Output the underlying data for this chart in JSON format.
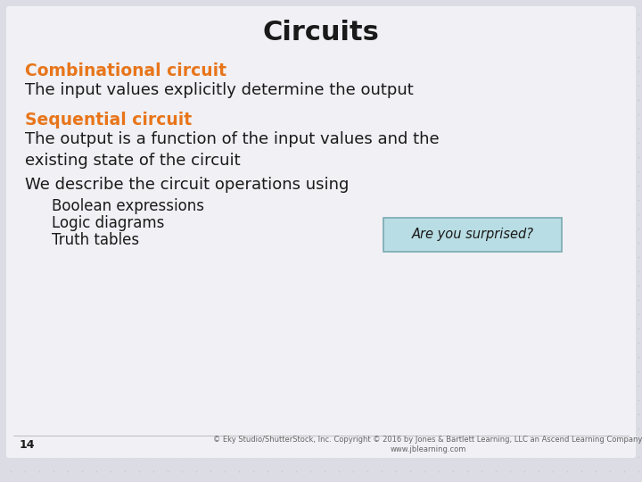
{
  "title": "Circuits",
  "title_color": "#1a1a1a",
  "title_fontsize": 22,
  "bg_color": "#dcdce4",
  "bg_dot_color": "#c8c8d4",
  "content_bg": "#f0f0f5",
  "orange_color": "#e8751a",
  "black_color": "#1a1a1a",
  "heading1": "Combinational circuit",
  "text1": "The input values explicitly determine the output",
  "heading2": "Sequential circuit",
  "text2": "The output is a function of the input values and the\nexisting state of the circuit",
  "text3": "We describe the circuit operations using",
  "bullet1": "Boolean expressions",
  "bullet2": "Logic diagrams",
  "bullet3": "Truth tables",
  "callout_text": "Are you surprised?",
  "callout_bg": "#b8dde4",
  "callout_border": "#7aaab0",
  "page_num": "14",
  "footer": "© Eky Studio/ShutterStock, Inc. Copyright © 2016 by Jones & Bartlett Learning, LLC an Ascend Learning Company\nwww.jblearning.com",
  "heading_fontsize": 13.5,
  "body_fontsize": 13,
  "bullet_fontsize": 12,
  "footer_fontsize": 6
}
